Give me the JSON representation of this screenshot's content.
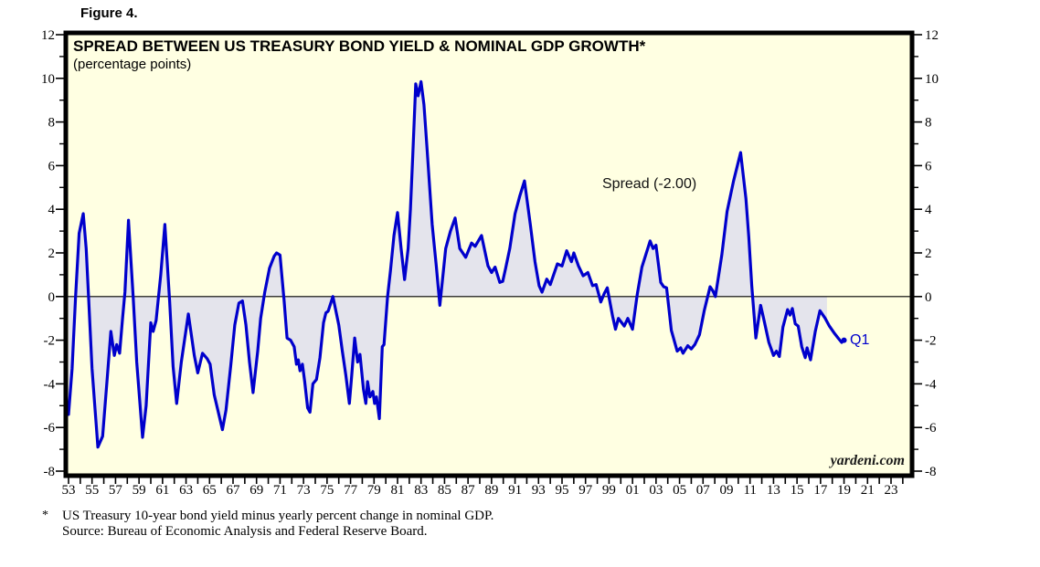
{
  "figure_label": "Figure 4.",
  "chart": {
    "title": "SPREAD BETWEEN US TREASURY BOND YIELD & NOMINAL GDP GROWTH*",
    "subtitle": "(percentage points)",
    "annotation": "Spread (-2.00)",
    "end_label": "Q1",
    "watermark": "yardeni.com",
    "colors": {
      "plot_background": "#FFFFE2",
      "line": "#0000CC",
      "fill": "#E4E4EC",
      "frame": "#000000",
      "zero_line": "#000000",
      "end_label_text": "#0000CC"
    }
  },
  "footnote": {
    "marker": "*",
    "line1": "US Treasury 10-year bond yield minus yearly percent change in nominal GDP.",
    "line2": "Source: Bureau of Economic Analysis and Federal Reserve Board."
  },
  "chart_data": {
    "type": "line",
    "title": "SPREAD BETWEEN US TREASURY BOND YIELD & NOMINAL GDP GROWTH*",
    "ylabel": "percentage points",
    "xlim": [
      1952.75,
      2024.8
    ],
    "ylim": [
      -8,
      12
    ],
    "grid": false,
    "legend": "none",
    "fill_to_zero": true,
    "fill_end_year": 2017.55,
    "last_point_label": "Q1",
    "last_point_value": -2.0,
    "x_ticks": {
      "minor_start": 1953,
      "minor_end": 2024,
      "minor_step": 1,
      "labeled": [
        {
          "year": 1953,
          "label": "53"
        },
        {
          "year": 1955,
          "label": "55"
        },
        {
          "year": 1957,
          "label": "57"
        },
        {
          "year": 1959,
          "label": "59"
        },
        {
          "year": 1961,
          "label": "61"
        },
        {
          "year": 1963,
          "label": "63"
        },
        {
          "year": 1965,
          "label": "65"
        },
        {
          "year": 1967,
          "label": "67"
        },
        {
          "year": 1969,
          "label": "69"
        },
        {
          "year": 1971,
          "label": "71"
        },
        {
          "year": 1973,
          "label": "73"
        },
        {
          "year": 1975,
          "label": "75"
        },
        {
          "year": 1977,
          "label": "77"
        },
        {
          "year": 1979,
          "label": "79"
        },
        {
          "year": 1981,
          "label": "81"
        },
        {
          "year": 1983,
          "label": "83"
        },
        {
          "year": 1985,
          "label": "85"
        },
        {
          "year": 1987,
          "label": "87"
        },
        {
          "year": 1989,
          "label": "89"
        },
        {
          "year": 1991,
          "label": "91"
        },
        {
          "year": 1993,
          "label": "93"
        },
        {
          "year": 1995,
          "label": "95"
        },
        {
          "year": 1997,
          "label": "97"
        },
        {
          "year": 1999,
          "label": "99"
        },
        {
          "year": 2001,
          "label": "01"
        },
        {
          "year": 2003,
          "label": "03"
        },
        {
          "year": 2005,
          "label": "05"
        },
        {
          "year": 2007,
          "label": "07"
        },
        {
          "year": 2009,
          "label": "09"
        },
        {
          "year": 2011,
          "label": "11"
        },
        {
          "year": 2013,
          "label": "13"
        },
        {
          "year": 2015,
          "label": "15"
        },
        {
          "year": 2017,
          "label": "17"
        },
        {
          "year": 2019,
          "label": "19"
        },
        {
          "year": 2021,
          "label": "21"
        },
        {
          "year": 2023,
          "label": "23"
        }
      ]
    },
    "y_ticks": {
      "labeled": [
        12,
        10,
        8,
        6,
        4,
        2,
        0,
        -2,
        -4,
        -6,
        -8
      ],
      "minor": [
        11,
        9,
        7,
        5,
        3,
        1,
        -1,
        -3,
        -5,
        -7
      ]
    },
    "series": [
      {
        "name": "Spread",
        "color": "#0000CC",
        "points": [
          [
            1953.0,
            -5.4
          ],
          [
            1953.3,
            -3.3
          ],
          [
            1953.6,
            0.0
          ],
          [
            1953.9,
            2.9
          ],
          [
            1954.25,
            3.8
          ],
          [
            1954.5,
            2.2
          ],
          [
            1954.7,
            0.0
          ],
          [
            1955.0,
            -3.3
          ],
          [
            1955.5,
            -6.9
          ],
          [
            1955.9,
            -6.4
          ],
          [
            1956.3,
            -3.7
          ],
          [
            1956.6,
            -1.6
          ],
          [
            1956.9,
            -2.7
          ],
          [
            1957.1,
            -2.2
          ],
          [
            1957.35,
            -2.6
          ],
          [
            1957.6,
            -1.0
          ],
          [
            1957.8,
            0.2
          ],
          [
            1958.1,
            3.5
          ],
          [
            1958.5,
            0.0
          ],
          [
            1958.8,
            -3.0
          ],
          [
            1959.3,
            -6.45
          ],
          [
            1959.6,
            -5.0
          ],
          [
            1960.0,
            -1.2
          ],
          [
            1960.2,
            -1.6
          ],
          [
            1960.45,
            -1.1
          ],
          [
            1960.85,
            1.0
          ],
          [
            1961.2,
            3.3
          ],
          [
            1961.6,
            -0.2
          ],
          [
            1961.9,
            -3.2
          ],
          [
            1962.2,
            -4.9
          ],
          [
            1962.6,
            -3.0
          ],
          [
            1963.2,
            -0.8
          ],
          [
            1963.7,
            -2.7
          ],
          [
            1964.0,
            -3.5
          ],
          [
            1964.4,
            -2.6
          ],
          [
            1964.8,
            -2.85
          ],
          [
            1965.05,
            -3.1
          ],
          [
            1965.4,
            -4.5
          ],
          [
            1966.1,
            -6.1
          ],
          [
            1966.4,
            -5.2
          ],
          [
            1966.8,
            -3.2
          ],
          [
            1967.15,
            -1.3
          ],
          [
            1967.5,
            -0.3
          ],
          [
            1967.8,
            -0.2
          ],
          [
            1968.1,
            -1.3
          ],
          [
            1968.4,
            -3.0
          ],
          [
            1968.7,
            -4.4
          ],
          [
            1969.1,
            -2.5
          ],
          [
            1969.35,
            -1.0
          ],
          [
            1969.7,
            0.2
          ],
          [
            1970.1,
            1.3
          ],
          [
            1970.5,
            1.85
          ],
          [
            1970.7,
            2.0
          ],
          [
            1971.0,
            1.9
          ],
          [
            1971.35,
            -0.2
          ],
          [
            1971.6,
            -1.9
          ],
          [
            1971.9,
            -2.0
          ],
          [
            1972.2,
            -2.3
          ],
          [
            1972.4,
            -3.1
          ],
          [
            1972.55,
            -2.9
          ],
          [
            1972.7,
            -3.4
          ],
          [
            1972.9,
            -3.1
          ],
          [
            1973.1,
            -3.9
          ],
          [
            1973.35,
            -5.1
          ],
          [
            1973.55,
            -5.3
          ],
          [
            1973.8,
            -4.0
          ],
          [
            1974.1,
            -3.8
          ],
          [
            1974.4,
            -2.8
          ],
          [
            1974.7,
            -1.2
          ],
          [
            1974.9,
            -0.75
          ],
          [
            1975.1,
            -0.67
          ],
          [
            1975.5,
            0.0
          ],
          [
            1976.0,
            -1.3
          ],
          [
            1976.3,
            -2.5
          ],
          [
            1976.6,
            -3.6
          ],
          [
            1976.9,
            -4.9
          ],
          [
            1977.1,
            -3.6
          ],
          [
            1977.35,
            -1.9
          ],
          [
            1977.6,
            -3.0
          ],
          [
            1977.8,
            -2.65
          ],
          [
            1978.1,
            -4.25
          ],
          [
            1978.3,
            -4.9
          ],
          [
            1978.45,
            -3.9
          ],
          [
            1978.65,
            -4.6
          ],
          [
            1978.9,
            -4.35
          ],
          [
            1979.05,
            -4.9
          ],
          [
            1979.2,
            -4.6
          ],
          [
            1979.45,
            -5.6
          ],
          [
            1979.7,
            -2.3
          ],
          [
            1979.85,
            -2.2
          ],
          [
            1980.15,
            0.0
          ],
          [
            1980.4,
            1.2
          ],
          [
            1980.7,
            2.8
          ],
          [
            1981.0,
            3.85
          ],
          [
            1981.3,
            2.2
          ],
          [
            1981.6,
            0.78
          ],
          [
            1981.9,
            2.2
          ],
          [
            1982.1,
            4.0
          ],
          [
            1982.3,
            6.5
          ],
          [
            1982.55,
            9.75
          ],
          [
            1982.75,
            9.2
          ],
          [
            1983.0,
            9.85
          ],
          [
            1983.25,
            8.8
          ],
          [
            1983.5,
            6.9
          ],
          [
            1983.95,
            3.3
          ],
          [
            1984.3,
            1.4
          ],
          [
            1984.6,
            -0.4
          ],
          [
            1985.1,
            2.2
          ],
          [
            1985.5,
            3.0
          ],
          [
            1985.9,
            3.6
          ],
          [
            1986.3,
            2.2
          ],
          [
            1986.8,
            1.8
          ],
          [
            1987.3,
            2.45
          ],
          [
            1987.6,
            2.3
          ],
          [
            1988.15,
            2.8
          ],
          [
            1988.7,
            1.4
          ],
          [
            1989.0,
            1.1
          ],
          [
            1989.3,
            1.35
          ],
          [
            1989.7,
            0.65
          ],
          [
            1989.95,
            0.7
          ],
          [
            1990.2,
            1.3
          ],
          [
            1990.55,
            2.2
          ],
          [
            1991.0,
            3.8
          ],
          [
            1991.4,
            4.6
          ],
          [
            1991.8,
            5.3
          ],
          [
            1992.3,
            3.3
          ],
          [
            1992.7,
            1.6
          ],
          [
            1993.05,
            0.5
          ],
          [
            1993.3,
            0.2
          ],
          [
            1993.7,
            0.8
          ],
          [
            1994.0,
            0.55
          ],
          [
            1994.6,
            1.5
          ],
          [
            1995.0,
            1.4
          ],
          [
            1995.4,
            2.1
          ],
          [
            1995.8,
            1.6
          ],
          [
            1996.0,
            2.0
          ],
          [
            1996.4,
            1.4
          ],
          [
            1996.8,
            0.95
          ],
          [
            1997.2,
            1.1
          ],
          [
            1997.6,
            0.5
          ],
          [
            1997.9,
            0.55
          ],
          [
            1998.3,
            -0.25
          ],
          [
            1998.6,
            0.15
          ],
          [
            1998.85,
            0.4
          ],
          [
            1999.3,
            -0.9
          ],
          [
            1999.55,
            -1.5
          ],
          [
            1999.8,
            -1.0
          ],
          [
            2000.3,
            -1.35
          ],
          [
            2000.6,
            -1.0
          ],
          [
            2001.0,
            -1.5
          ],
          [
            2001.4,
            0.1
          ],
          [
            2001.8,
            1.35
          ],
          [
            2002.5,
            2.55
          ],
          [
            2002.75,
            2.2
          ],
          [
            2003.0,
            2.35
          ],
          [
            2003.4,
            0.65
          ],
          [
            2003.65,
            0.45
          ],
          [
            2003.9,
            0.4
          ],
          [
            2004.3,
            -1.55
          ],
          [
            2004.8,
            -2.5
          ],
          [
            2005.1,
            -2.35
          ],
          [
            2005.3,
            -2.6
          ],
          [
            2005.7,
            -2.25
          ],
          [
            2006.0,
            -2.4
          ],
          [
            2006.3,
            -2.2
          ],
          [
            2006.7,
            -1.75
          ],
          [
            2007.1,
            -0.65
          ],
          [
            2007.6,
            0.45
          ],
          [
            2007.85,
            0.25
          ],
          [
            2008.05,
            0.0
          ],
          [
            2008.6,
            1.9
          ],
          [
            2009.05,
            3.9
          ],
          [
            2009.6,
            5.3
          ],
          [
            2010.2,
            6.6
          ],
          [
            2010.65,
            4.5
          ],
          [
            2010.9,
            2.7
          ],
          [
            2011.15,
            0.5
          ],
          [
            2011.5,
            -1.9
          ],
          [
            2011.9,
            -0.4
          ],
          [
            2012.2,
            -1.1
          ],
          [
            2012.6,
            -2.1
          ],
          [
            2013.0,
            -2.7
          ],
          [
            2013.25,
            -2.5
          ],
          [
            2013.5,
            -2.75
          ],
          [
            2013.8,
            -1.4
          ],
          [
            2014.2,
            -0.6
          ],
          [
            2014.4,
            -0.85
          ],
          [
            2014.6,
            -0.55
          ],
          [
            2014.85,
            -1.25
          ],
          [
            2015.1,
            -1.35
          ],
          [
            2015.4,
            -2.3
          ],
          [
            2015.7,
            -2.8
          ],
          [
            2015.85,
            -2.35
          ],
          [
            2016.15,
            -2.9
          ],
          [
            2016.55,
            -1.6
          ],
          [
            2016.95,
            -0.65
          ],
          [
            2017.4,
            -1.0
          ],
          [
            2017.75,
            -1.35
          ],
          [
            2018.2,
            -1.7
          ],
          [
            2018.5,
            -1.9
          ],
          [
            2018.8,
            -2.1
          ],
          [
            2019.0,
            -2.0
          ]
        ]
      }
    ]
  }
}
